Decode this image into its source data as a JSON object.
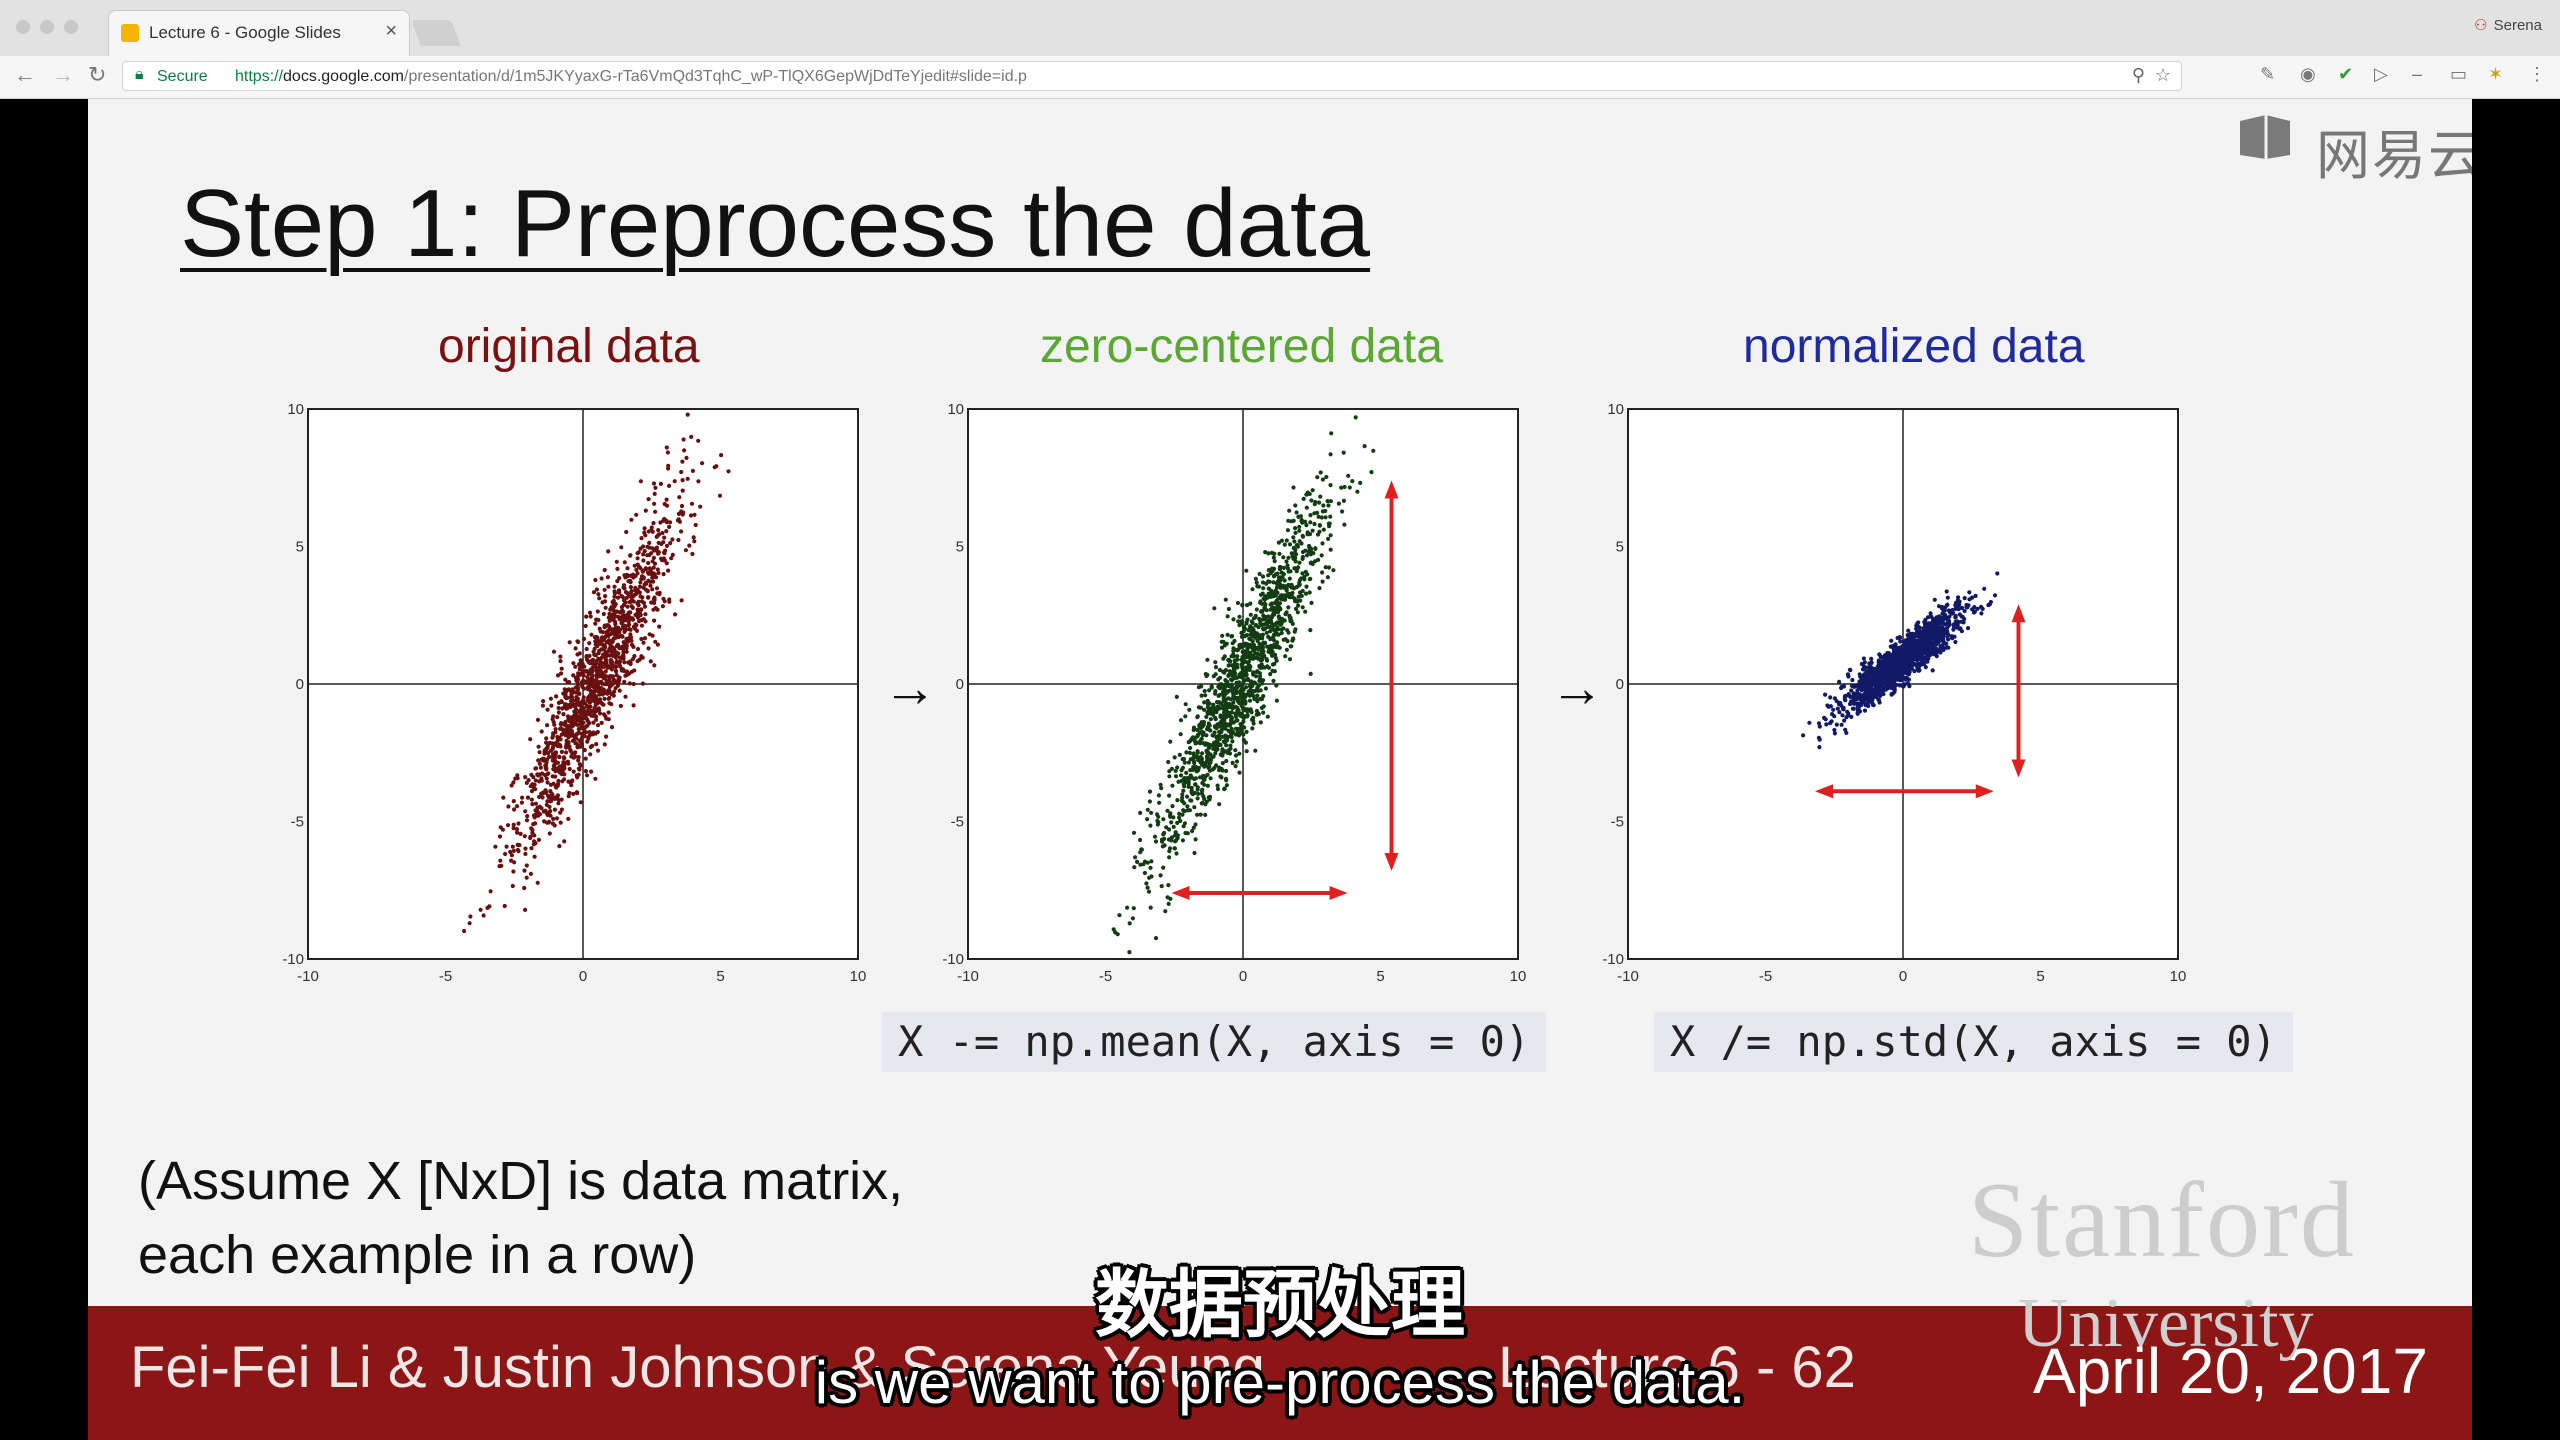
{
  "browser": {
    "tab_title": "Lecture 6 - Google Slides",
    "tab_close": "×",
    "profile_name": "Serena",
    "secure_label": "Secure",
    "url_scheme": "https://",
    "url_host": "docs.google.com",
    "url_path": "/presentation/d/1m5JKYyaxG-rTa6VmQd3TqhC_wP-TlQX6GepWjDdTeYjedit#slide=id.p"
  },
  "watermark": {
    "text": "网易云课堂"
  },
  "slide": {
    "title": "Step 1: Preprocess the data",
    "panels": [
      {
        "title": "original data",
        "title_color": "#7a1010",
        "point_color": "#6a0f0f"
      },
      {
        "title": "zero-centered data",
        "title_color": "#5aa832",
        "point_color": "#123d12"
      },
      {
        "title": "normalized data",
        "title_color": "#1f2a9e",
        "point_color": "#101a66"
      }
    ],
    "arrow_glyph": "→",
    "code_mean": "X -= np.mean(X, axis = 0)",
    "code_std": "X /= np.std(X, axis = 0)",
    "note_line1": "(Assume X [NxD] is data matrix,",
    "note_line2": "each example in a row)",
    "logo_stanford": "Stanford",
    "logo_university": "University",
    "footer_authors": "Fei-Fei Li & Justin Johnson & Serena Yeung",
    "footer_lecture": "Lecture 6 - 62",
    "footer_date": "April 20, 2017"
  },
  "subtitles": {
    "chinese": "数据预处理",
    "english": "is we want to pre-process the data."
  },
  "chart_data": [
    {
      "type": "scatter",
      "title": "original data",
      "xlim": [
        -10,
        10
      ],
      "ylim": [
        -10,
        10
      ],
      "xticks": [
        "-10",
        "-5",
        "0",
        "5",
        "10"
      ],
      "yticks": [
        "10",
        "5",
        "0",
        "-5",
        "-10"
      ],
      "distribution": {
        "center": [
          0.5,
          0.2
        ],
        "major_axis_angle_deg": 66,
        "major_sd": 3.6,
        "minor_sd": 0.55,
        "n": 1400
      },
      "annotations": []
    },
    {
      "type": "scatter",
      "title": "zero-centered data",
      "xlim": [
        -10,
        10
      ],
      "ylim": [
        -10,
        10
      ],
      "xticks": [
        "-10",
        "-5",
        "0",
        "5",
        "10"
      ],
      "yticks": [
        "10",
        "5",
        "0",
        "-5",
        "-10"
      ],
      "distribution": {
        "center": [
          0,
          0.2
        ],
        "major_axis_angle_deg": 66,
        "major_sd": 3.6,
        "minor_sd": 0.55,
        "n": 1400
      },
      "annotations": [
        {
          "type": "double-arrow-vertical",
          "x": 5.4,
          "y_from": -6.8,
          "y_to": 7.4,
          "color": "#e02020"
        },
        {
          "type": "double-arrow-horizontal",
          "y": -7.6,
          "x_from": -2.6,
          "x_to": 3.8,
          "color": "#e02020"
        }
      ]
    },
    {
      "type": "scatter",
      "title": "normalized data",
      "xlim": [
        -10,
        10
      ],
      "ylim": [
        -10,
        10
      ],
      "xticks": [
        "-10",
        "-5",
        "0",
        "5",
        "10"
      ],
      "yticks": [
        "10",
        "5",
        "0",
        "-5",
        "-10"
      ],
      "distribution": {
        "center": [
          0,
          0.9
        ],
        "major_axis_angle_deg": 40,
        "major_sd": 1.35,
        "minor_sd": 0.32,
        "n": 1400
      },
      "annotations": [
        {
          "type": "double-arrow-vertical",
          "x": 4.2,
          "y_from": -3.4,
          "y_to": 2.9,
          "color": "#e02020"
        },
        {
          "type": "double-arrow-horizontal",
          "y": -3.9,
          "x_from": -3.2,
          "x_to": 3.3,
          "color": "#e02020"
        }
      ]
    }
  ]
}
